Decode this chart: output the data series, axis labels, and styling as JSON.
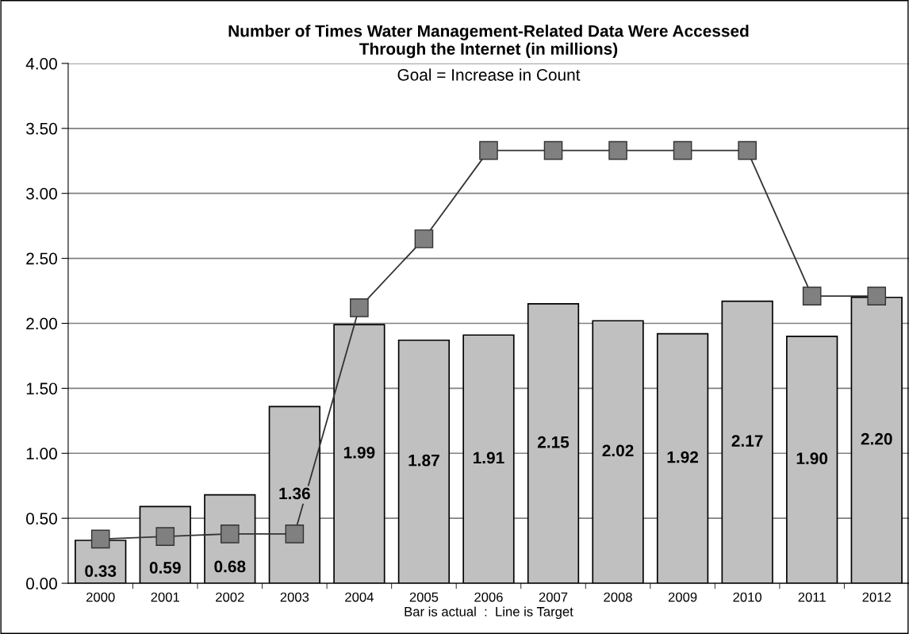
{
  "chart_data": {
    "type": "bar",
    "title": "Number of Times Water Management-Related Data Were Accessed\nThrough the Internet (in millions)",
    "annotations": [
      "Goal = Increase in Count"
    ],
    "xlabel": "Bar is actual  :  Line is Target",
    "categories": [
      "2000",
      "2001",
      "2002",
      "2003",
      "2004",
      "2005",
      "2006",
      "2007",
      "2008",
      "2009",
      "2010",
      "2011",
      "2012"
    ],
    "series": [
      {
        "color": "#c0c0c0",
        "values": [
          0.33,
          0.59,
          0.68,
          1.36,
          1.99,
          1.87,
          1.91,
          2.15,
          2.02,
          1.92,
          2.17,
          1.9,
          2.2
        ],
        "value_labels": [
          "0.33",
          "0.59",
          "0.68",
          "1.36",
          "1.99",
          "1.87",
          "1.91",
          "2.15",
          "2.02",
          "1.92",
          "2.17",
          "1.90",
          "2.20"
        ]
      },
      {
        "type": "line",
        "color": "#808080",
        "marker": "square",
        "line_style": "solid",
        "values": [
          0.34,
          0.36,
          0.38,
          0.38,
          2.12,
          2.65,
          3.33,
          3.33,
          3.33,
          3.33,
          3.33,
          2.21,
          2.21
        ]
      }
    ],
    "ylim": [
      0,
      4
    ],
    "yticks": [
      {
        "value": 0,
        "label": "0.00"
      },
      {
        "value": 0.5,
        "label": "0.50"
      },
      {
        "value": 1,
        "label": "1.00"
      },
      {
        "value": 1.5,
        "label": "1.50"
      },
      {
        "value": 2,
        "label": "2.00"
      },
      {
        "value": 2.5,
        "label": "2.50"
      },
      {
        "value": 3,
        "label": "3.00"
      },
      {
        "value": 3.5,
        "label": "3.50"
      },
      {
        "value": 4,
        "label": "4.00"
      }
    ],
    "grid": "y",
    "legend": false
  }
}
